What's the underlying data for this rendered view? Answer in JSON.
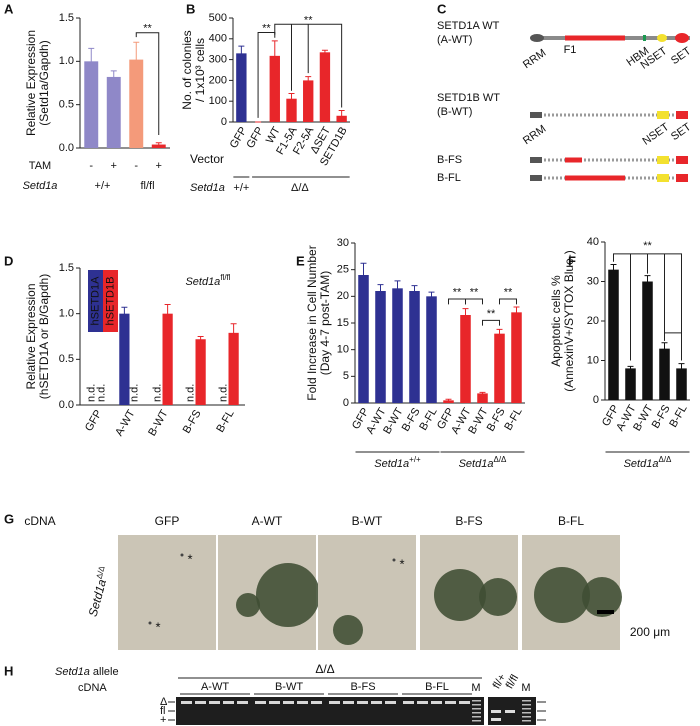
{
  "chart_data": [
    {
      "panel": "A",
      "type": "bar",
      "y_label": [
        "Relative Expression",
        "(Setd1a/Gapdh)"
      ],
      "categories": [
        "-",
        "+",
        "-",
        "+"
      ],
      "values": [
        1.0,
        0.82,
        1.02,
        0.04
      ],
      "errors": [
        0.15,
        0.07,
        0.2,
        0.02
      ],
      "colors": [
        "#8f88c8",
        "#8f88c8",
        "#f49a7a",
        "#e8282b"
      ],
      "ylim": [
        0,
        1.5
      ],
      "yticks": [
        {
          "value": 0,
          "label": "0.0"
        },
        {
          "value": 0.5,
          "label": "0.5"
        },
        {
          "value": 1,
          "label": "1.0"
        },
        {
          "value": 1.5,
          "label": "1.5"
        }
      ],
      "row_label": "TAM",
      "group_label": "Setd1a",
      "groups": [
        "+/+",
        "fl/fl"
      ],
      "significance": [
        "**"
      ]
    },
    {
      "panel": "B",
      "type": "bar",
      "y_label": [
        "No. of colonies",
        "/ 1x10³ cells"
      ],
      "categories": [
        "GFP",
        "GFP",
        "WT",
        "F1-5A",
        "F2-5A",
        "ΔSET",
        "SETD1B"
      ],
      "values": [
        330,
        0,
        318,
        112,
        200,
        335,
        30
      ],
      "errors": [
        35,
        0,
        72,
        25,
        18,
        10,
        25
      ],
      "colors": [
        "#2e3192",
        "#e8262a",
        "#e8262a",
        "#e8262a",
        "#e8262a",
        "#e8262a",
        "#e8262a"
      ],
      "ylim": [
        0,
        500
      ],
      "yticks": [
        0,
        100,
        200,
        300,
        400,
        500
      ],
      "row_label": "Vector",
      "group_label": "Setd1a",
      "groups": [
        "+/+",
        "Δ/Δ"
      ],
      "significance": [
        "**",
        "**"
      ]
    },
    {
      "panel": "D",
      "type": "bar",
      "y_label": [
        "Relative Expression",
        "(hSETD1A or B/Gapdh)"
      ],
      "categories": [
        "GFP",
        "A-WT",
        "B-WT",
        "B-FS",
        "B-FL"
      ],
      "series": [
        {
          "name": "hSETD1A",
          "color": "#2e3192",
          "values": [
            null,
            1.0,
            null,
            null,
            null
          ],
          "errors": [
            null,
            0.07,
            null,
            null,
            null
          ]
        },
        {
          "name": "hSETD1B",
          "color": "#e8262a",
          "values": [
            null,
            null,
            1.0,
            0.72,
            0.79
          ],
          "errors": [
            null,
            null,
            0.1,
            0.03,
            0.1
          ]
        }
      ],
      "missing_label": "n.d.",
      "ylim": [
        0,
        1.5
      ],
      "yticks": [
        {
          "value": 0,
          "label": "0.0"
        },
        {
          "value": 0.5,
          "label": "0.5"
        },
        {
          "value": 1,
          "label": "1.0"
        },
        {
          "value": 1.5,
          "label": "1.5"
        }
      ],
      "annotation": "Setd1a",
      "annotation_sup": "fl/fl"
    },
    {
      "panel": "E",
      "type": "bar",
      "y_label": [
        "Fold Increase in Cell Number",
        "(Day 4-7 post-TAM)"
      ],
      "categories": [
        "GFP",
        "A-WT",
        "B-WT",
        "B-FS",
        "B-FL",
        "GFP",
        "A-WT",
        "B-WT",
        "B-FS",
        "B-FL"
      ],
      "values": [
        24,
        21,
        21.5,
        21,
        20,
        0.5,
        16.5,
        1.8,
        13,
        17
      ],
      "errors": [
        2.2,
        1.2,
        1.4,
        1,
        0.8,
        0.2,
        1.2,
        0.2,
        0.8,
        1
      ],
      "colors": [
        "#2e3192",
        "#2e3192",
        "#2e3192",
        "#2e3192",
        "#2e3192",
        "#e8262a",
        "#e8262a",
        "#e8262a",
        "#e8262a",
        "#e8262a"
      ],
      "ylim": [
        0,
        30
      ],
      "yticks": [
        0,
        5,
        10,
        15,
        20,
        25,
        30
      ],
      "group_label": "Setd1a",
      "groups": [
        "+/+",
        "Δ/Δ"
      ],
      "significance": [
        "**",
        "**",
        "**",
        "**"
      ]
    },
    {
      "panel": "F",
      "type": "bar",
      "y_label": [
        "Apoptotic cells %",
        "(AnnexinV+/SYTOX Blue-)"
      ],
      "categories": [
        "GFP",
        "A-WT",
        "B-WT",
        "B-FS",
        "B-FL"
      ],
      "values": [
        33,
        8,
        30,
        13,
        8
      ],
      "errors": [
        1.3,
        0.5,
        1.5,
        1.5,
        1.2
      ],
      "color": "#111111",
      "ylim": [
        0,
        40
      ],
      "yticks": [
        0,
        10,
        20,
        30,
        40
      ],
      "group_label": "Setd1a",
      "groups": [
        "Δ/Δ"
      ],
      "significance": [
        "**"
      ]
    }
  ],
  "panel_c": {
    "panel": "C",
    "constructs": [
      {
        "name": "SETD1A WT",
        "abbr": "(A-WT)",
        "domains": [
          "RRM",
          "F1",
          "HBM",
          "NSET",
          "SET"
        ]
      },
      {
        "name": "SETD1B WT",
        "abbr": "(B-WT)",
        "domains": [
          "RRM",
          "NSET",
          "SET"
        ]
      },
      {
        "name": "B-FS"
      },
      {
        "name": "B-FL"
      }
    ]
  },
  "panel_g": {
    "panel": "G",
    "row_label": "cDNA",
    "columns": [
      "GFP",
      "A-WT",
      "B-WT",
      "B-FS",
      "B-FL"
    ],
    "genotype": "Setd1a",
    "genotype_sup": "Δ/Δ",
    "marker": "*",
    "scale": "200 μm"
  },
  "panel_h": {
    "panel": "H",
    "allele_label": "Setd1a",
    "allele_suffix": " allele",
    "cdna_label": "cDNA",
    "genotype": "Δ/Δ",
    "groups": [
      "A-WT",
      "B-WT",
      "B-FS",
      "B-FL"
    ],
    "marker_lane": "M",
    "controls": [
      "fl/+",
      "fl/fl"
    ],
    "bands": [
      "Δ",
      "fl",
      "+"
    ]
  }
}
